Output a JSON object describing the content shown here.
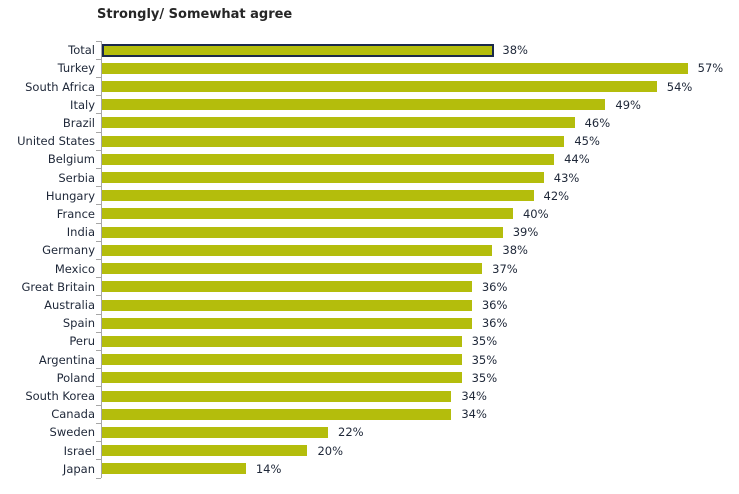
{
  "chart_data": {
    "type": "bar",
    "orientation": "horizontal",
    "title": "Strongly/ Somewhat agree",
    "categories": [
      "Total",
      "Turkey",
      "South Africa",
      "Italy",
      "Brazil",
      "United States",
      "Belgium",
      "Serbia",
      "Hungary",
      "France",
      "India",
      "Germany",
      "Mexico",
      "Great Britain",
      "Australia",
      "Spain",
      "Peru",
      "Argentina",
      "Poland",
      "South Korea",
      "Canada",
      "Sweden",
      "Israel",
      "Japan"
    ],
    "values": [
      38,
      57,
      54,
      49,
      46,
      45,
      44,
      43,
      42,
      40,
      39,
      38,
      37,
      36,
      36,
      36,
      35,
      35,
      35,
      34,
      34,
      22,
      20,
      14
    ],
    "value_labels": [
      "38%",
      "57%",
      "54%",
      "49%",
      "46%",
      "45%",
      "44%",
      "43%",
      "42%",
      "40%",
      "39%",
      "38%",
      "37%",
      "36%",
      "36%",
      "36%",
      "35%",
      "35%",
      "35%",
      "34%",
      "34%",
      "22%",
      "20%",
      "14%"
    ],
    "value_suffix": "%",
    "highlighted_category": "Total",
    "xlim": [
      0,
      62
    ],
    "grid": false,
    "legend": null,
    "colors": {
      "bar_fill": "#b4bd0c",
      "total_border": "#1b294a",
      "label_text": "#1e2738",
      "value_text": "#1e2738",
      "title_text": "#262626",
      "axis": "#a6a6a6"
    }
  }
}
